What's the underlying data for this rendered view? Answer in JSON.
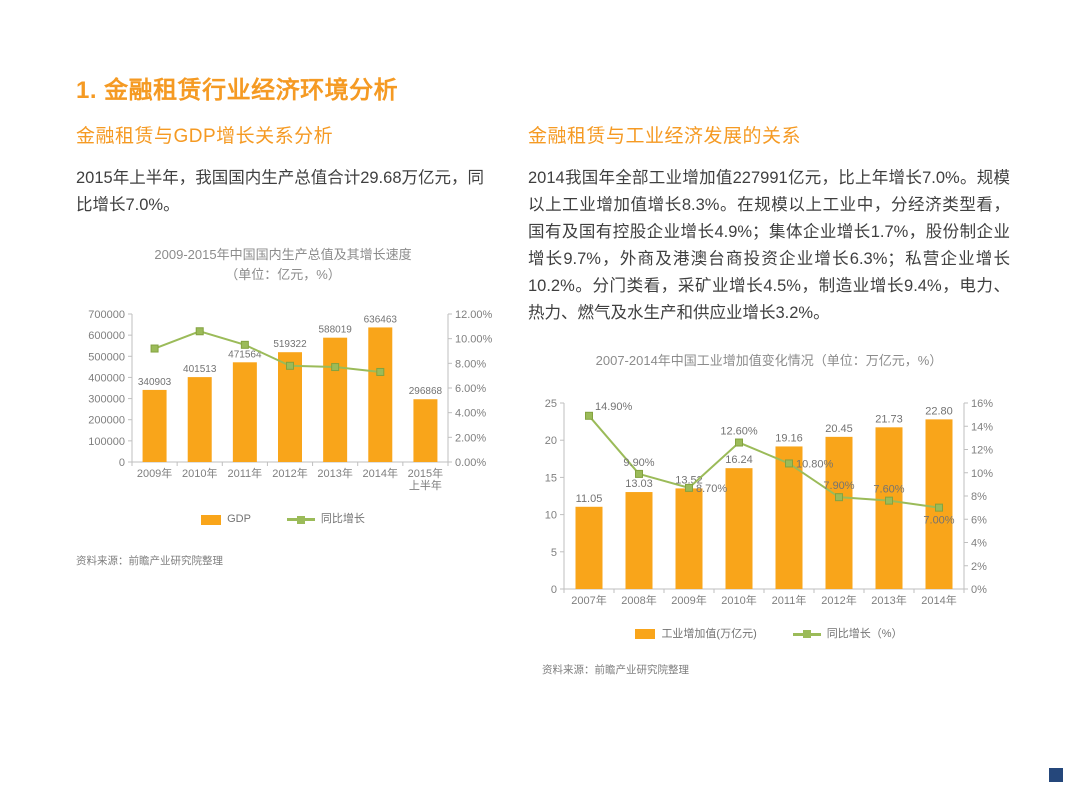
{
  "page": {
    "title": "1. 金融租赁行业经济环境分析"
  },
  "colors": {
    "accent_orange": "#F59A23",
    "bar_orange": "#F9A51A",
    "line_green": "#9BBB59",
    "text_dark": "#3F3F3F",
    "text_gray": "#7F7F7F",
    "corner_blue": "#25477B"
  },
  "left": {
    "heading": "金融租赁与GDP增长关系分析",
    "paragraph": "2015年上半年，我国国内生产总值合计29.68万亿元，同比增长7.0%。",
    "source": "资料来源：前瞻产业研究院整理"
  },
  "right": {
    "heading": "金融租赁与工业经济发展的关系",
    "paragraph": "2014我国年全部工业增加值227991亿元，比上年增长7.0%。规模以上工业增加值增长8.3%。在规模以上工业中，分经济类型看，国有及国有控股企业增长4.9%；集体企业增长1.7%，股份制企业增长9.7%，外商及港澳台商投资企业增长6.3%；私营企业增长10.2%。分门类看，采矿业增长4.5%，制造业增长9.4%，电力、热力、燃气及水生产和供应业增长3.2%。",
    "source": "资料来源：前瞻产业研究院整理"
  },
  "chart_data": [
    {
      "id": "gdp-chart",
      "type": "bar+line",
      "title": "2009-2015年中国国内生产总值及其增长速度",
      "subtitle": "（单位：亿元，%）",
      "categories": [
        "2009年",
        "2010年",
        "2011年",
        "2012年",
        "2013年",
        "2014年",
        "2015年\n上半年"
      ],
      "bar": {
        "name": "GDP",
        "values": [
          340903,
          401513,
          471564,
          519322,
          588019,
          636463,
          296868
        ],
        "labels": [
          "340903",
          "401513",
          "471564",
          "519322",
          "588019",
          "636463",
          "296868"
        ]
      },
      "line": {
        "name": "同比增长",
        "values": [
          9.2,
          10.6,
          9.5,
          7.8,
          7.7,
          7.3,
          null
        ],
        "labels": null
      },
      "axes": {
        "y1": {
          "min": 0,
          "max": 700000,
          "tick_labels": [
            "0",
            "100000",
            "200000",
            "300000",
            "400000",
            "500000",
            "600000",
            "700000"
          ]
        },
        "y2": {
          "min": 0,
          "max": 12,
          "tick_labels": [
            "0.00%",
            "2.00%",
            "4.00%",
            "6.00%",
            "8.00%",
            "10.00%",
            "12.00%"
          ]
        }
      },
      "grid": false,
      "legend": [
        "GDP",
        "同比增长"
      ],
      "legend_position": "bottom"
    },
    {
      "id": "industry-chart",
      "type": "bar+line",
      "title": "2007-2014年中国工业增加值变化情况（单位：万亿元，%）",
      "subtitle": "",
      "categories": [
        "2007年",
        "2008年",
        "2009年",
        "2010年",
        "2011年",
        "2012年",
        "2013年",
        "2014年"
      ],
      "bar": {
        "name": "工业增加值(万亿元)",
        "values": [
          11.05,
          13.03,
          13.52,
          16.24,
          19.16,
          20.45,
          21.73,
          22.8
        ],
        "labels": [
          "11.05",
          "13.03",
          "13.52",
          "16.24",
          "19.16",
          "20.45",
          "21.73",
          "22.80"
        ]
      },
      "line": {
        "name": "同比增长（%）",
        "values": [
          14.9,
          9.9,
          8.7,
          12.6,
          10.8,
          7.9,
          7.6,
          7.0
        ],
        "labels": [
          "14.90%",
          "9.90%",
          "8.70%",
          "12.60%",
          "10.80%",
          "7.90%",
          "7.60%",
          "7.00%"
        ],
        "label_pos": [
          "right-up",
          "up",
          "right",
          "up",
          "right",
          "up",
          "up",
          "down"
        ]
      },
      "axes": {
        "y1": {
          "min": 0,
          "max": 25,
          "tick_labels": [
            "0",
            "5",
            "10",
            "15",
            "20",
            "25"
          ]
        },
        "y2": {
          "min": 0,
          "max": 16,
          "tick_labels": [
            "0%",
            "2%",
            "4%",
            "6%",
            "8%",
            "10%",
            "12%",
            "14%",
            "16%"
          ]
        }
      },
      "grid": false,
      "legend": [
        "工业增加值(万亿元)",
        "同比增长（%）"
      ],
      "legend_position": "bottom"
    }
  ]
}
